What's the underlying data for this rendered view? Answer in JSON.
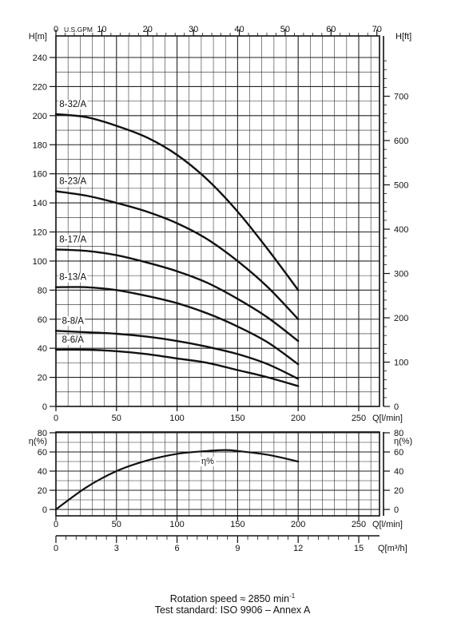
{
  "chart_data": [
    {
      "type": "line",
      "title": "",
      "xlabel": "Q[l/min]",
      "ylabel": "H[m]",
      "ylabel_right": "H[ft]",
      "xlabel_top": "U.S.GPM",
      "xlim": [
        0,
        265
      ],
      "ylim": [
        0,
        245
      ],
      "x_ticks": [
        0,
        50,
        100,
        150,
        200,
        250
      ],
      "y_ticks": [
        0,
        20,
        40,
        60,
        80,
        100,
        120,
        140,
        160,
        180,
        200,
        220,
        240
      ],
      "ft_ticks": [
        0,
        100,
        200,
        300,
        400,
        500,
        600,
        700
      ],
      "gpm_ticks": [
        0,
        10,
        20,
        30,
        40,
        50,
        60,
        70
      ],
      "grid": true,
      "series": [
        {
          "name": "8-32/A",
          "x": [
            0,
            25,
            50,
            75,
            100,
            125,
            150,
            175,
            200
          ],
          "values": [
            201,
            199,
            193,
            185,
            173,
            156,
            134,
            108,
            80
          ]
        },
        {
          "name": "8-23/A",
          "x": [
            0,
            25,
            50,
            75,
            100,
            125,
            150,
            175,
            200
          ],
          "values": [
            148,
            145,
            140,
            134,
            126,
            115,
            100,
            82,
            60
          ]
        },
        {
          "name": "8-17/A",
          "x": [
            0,
            25,
            50,
            75,
            100,
            125,
            150,
            175,
            200
          ],
          "values": [
            108,
            107,
            104,
            99,
            93,
            85,
            74,
            61,
            45
          ]
        },
        {
          "name": "8-13/A",
          "x": [
            0,
            25,
            50,
            75,
            100,
            125,
            150,
            175,
            200
          ],
          "values": [
            82,
            82,
            80,
            76,
            71,
            64,
            55,
            44,
            29
          ]
        },
        {
          "name": "8-8/A",
          "x": [
            0,
            25,
            50,
            75,
            100,
            125,
            150,
            175,
            200
          ],
          "values": [
            52,
            51,
            50,
            48,
            45,
            41,
            36,
            29,
            19
          ]
        },
        {
          "name": "8-6/A",
          "x": [
            0,
            25,
            50,
            75,
            100,
            125,
            150,
            175,
            200
          ],
          "values": [
            39,
            39,
            38,
            36,
            33,
            30,
            25,
            20,
            14
          ]
        }
      ]
    },
    {
      "type": "line",
      "title": "",
      "xlabel": "Q[l/min]",
      "ylabel": "η(%)",
      "ylabel_right": "η(%)",
      "xlabel_bottom": "Q[m³/h]",
      "xlim": [
        0,
        265
      ],
      "ylim": [
        0,
        80
      ],
      "x_ticks": [
        0,
        50,
        100,
        150,
        200,
        250
      ],
      "y_ticks": [
        0,
        20,
        40,
        60,
        80
      ],
      "m3h_ticks": [
        0,
        3,
        6,
        9,
        12,
        15
      ],
      "grid": true,
      "series": [
        {
          "name": "η%",
          "x": [
            0,
            25,
            50,
            75,
            100,
            125,
            140,
            150,
            175,
            200
          ],
          "values": [
            0,
            23,
            40,
            51,
            58,
            61,
            62,
            61,
            57,
            50
          ]
        }
      ]
    }
  ],
  "footer": {
    "rotation_prefix": "Rotation speed ≈ 2850 min",
    "rotation_sup": "-1",
    "standard": "Test standard: ISO 9906 – Annex A"
  }
}
